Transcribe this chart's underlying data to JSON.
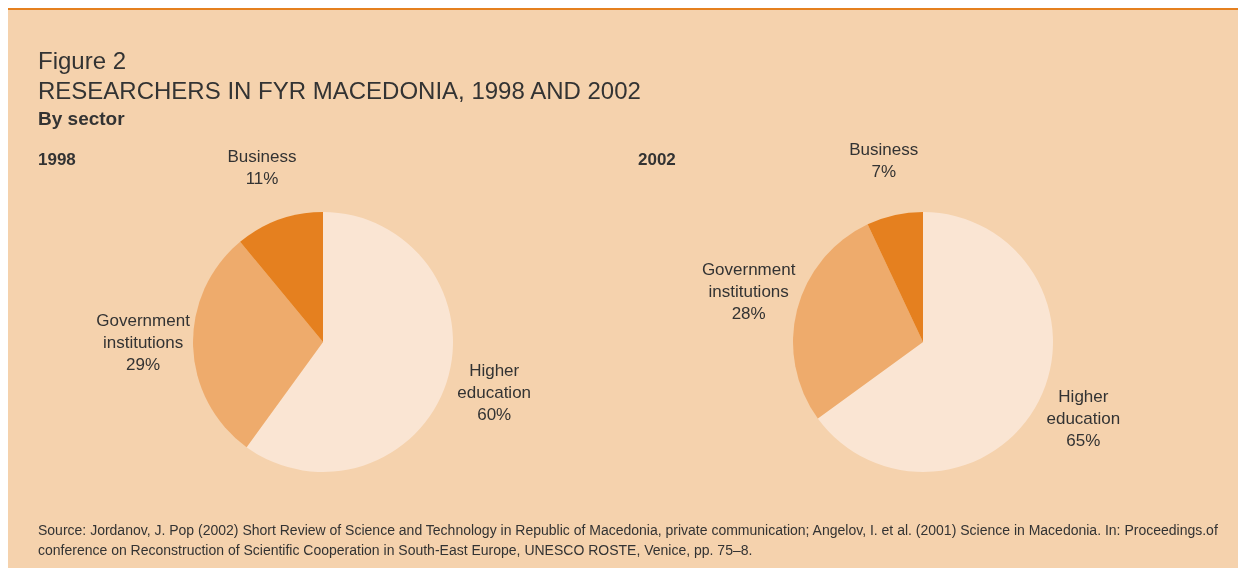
{
  "chart_data": [
    {
      "type": "pie",
      "title": "1998",
      "annotations": [
        "Figure 2",
        "RESEARCHERS IN FYR MACEDONIA, 1998 AND 2002",
        "By sector"
      ],
      "categories": [
        "Higher education",
        "Government institutions",
        "Business"
      ],
      "values": [
        60,
        29,
        11
      ],
      "value_labels": [
        "60%",
        "29%",
        "11%"
      ],
      "colors": [
        "#fae5d3",
        "#eeab6c",
        "#e5801f"
      ]
    },
    {
      "type": "pie",
      "title": "2002",
      "annotations": [
        "Source: Jordanov, J. Pop (2002) Short Review of Science and Technology in Republic of Macedonia, private communication; Angelov, I. et al. (2001) Science in Macedonia. In: Proceedings.of conference on Reconstruction of Scientific Cooperation in South-East Europe, UNESCO ROSTE, Venice, pp. 75–8."
      ],
      "categories": [
        "Higher education",
        "Government institutions",
        "Business"
      ],
      "values": [
        65,
        28,
        7
      ],
      "value_labels": [
        "65%",
        "28%",
        "7%"
      ],
      "colors": [
        "#fae5d3",
        "#eeab6c",
        "#e5801f"
      ]
    }
  ]
}
